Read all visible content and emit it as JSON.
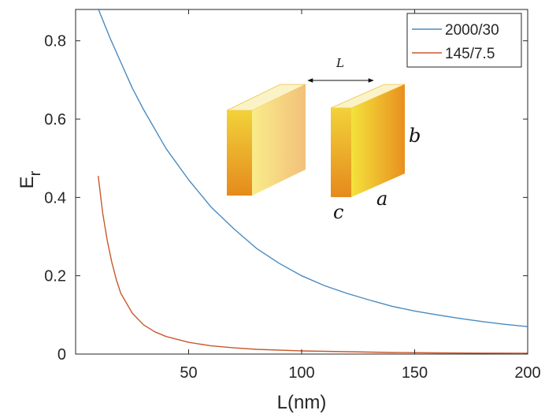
{
  "chart_data": {
    "type": "line",
    "title": "",
    "xlabel": "L(nm)",
    "ylabel": "E",
    "ylabel_subscript": "r",
    "xlim": [
      0,
      200
    ],
    "ylim": [
      0,
      0.88
    ],
    "xticks": [
      50,
      100,
      150,
      200
    ],
    "yticks": [
      0,
      0.2,
      0.4,
      0.6,
      0.8
    ],
    "xtick_labels": [
      "50",
      "100",
      "150",
      "200"
    ],
    "ytick_labels": [
      "0",
      "0.2",
      "0.4",
      "0.6",
      "0.8"
    ],
    "grid": false,
    "legend_position": "top-right",
    "series": [
      {
        "name": "2000/30",
        "color": "#4a8ac0",
        "x": [
          10,
          15,
          20,
          25,
          30,
          40,
          50,
          60,
          70,
          80,
          90,
          100,
          110,
          120,
          130,
          140,
          150,
          160,
          170,
          180,
          190,
          200
        ],
        "y": [
          0.882,
          0.81,
          0.745,
          0.68,
          0.625,
          0.525,
          0.445,
          0.375,
          0.32,
          0.27,
          0.232,
          0.2,
          0.175,
          0.155,
          0.138,
          0.122,
          0.11,
          0.1,
          0.091,
          0.083,
          0.076,
          0.07
        ]
      },
      {
        "name": "145/7.5",
        "color": "#c9582d",
        "x": [
          10,
          12,
          14,
          16,
          18,
          20,
          25,
          30,
          35,
          40,
          50,
          60,
          70,
          80,
          100,
          120,
          140,
          160,
          180,
          200
        ],
        "y": [
          0.455,
          0.36,
          0.29,
          0.235,
          0.19,
          0.155,
          0.105,
          0.075,
          0.057,
          0.045,
          0.03,
          0.021,
          0.016,
          0.012,
          0.008,
          0.006,
          0.004,
          0.003,
          0.0025,
          0.002
        ]
      }
    ],
    "inset": {
      "distance_label": "L",
      "dimension_labels": {
        "height": "b",
        "width": "a",
        "thickness": "c"
      }
    }
  }
}
